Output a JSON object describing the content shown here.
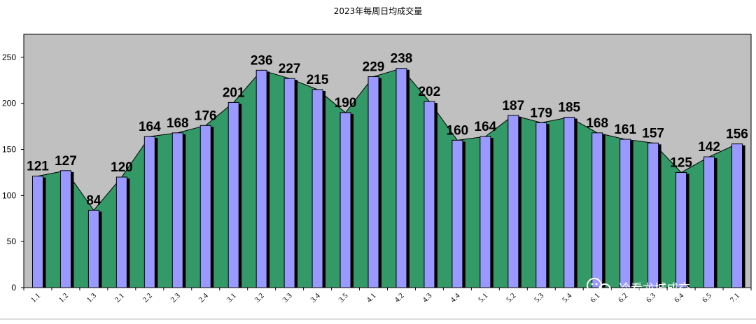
{
  "chart_data": {
    "type": "bar",
    "title": "2023年每周日均成交量",
    "categories": [
      "1.1",
      "1.2",
      "1.3",
      "2.1",
      "2.2",
      "2.3",
      "2.4",
      "3.1",
      "3.2",
      "3.3",
      "3.4",
      "3.5",
      "4.1",
      "4.2",
      "4.3",
      "4.4",
      "5.1",
      "5.2",
      "5.3",
      "5.4",
      "6.1",
      "6.2",
      "6.3",
      "6.4",
      "6.5",
      "7.1"
    ],
    "values": [
      121,
      127,
      84,
      120,
      164,
      168,
      176,
      201,
      236,
      227,
      215,
      190,
      229,
      238,
      202,
      160,
      164,
      187,
      179,
      185,
      168,
      161,
      157,
      125,
      142,
      156
    ],
    "ylim": [
      0,
      275
    ],
    "yticks": [
      0,
      50,
      100,
      150,
      200,
      250
    ],
    "grid": false,
    "colors": {
      "plot_bg": "#c0c0c0",
      "area": "#339966",
      "bar": "#9999ff",
      "bar_shadow": "#000000"
    }
  },
  "watermark": {
    "text": "冷看龙城成交",
    "icon": "wechat-icon"
  }
}
